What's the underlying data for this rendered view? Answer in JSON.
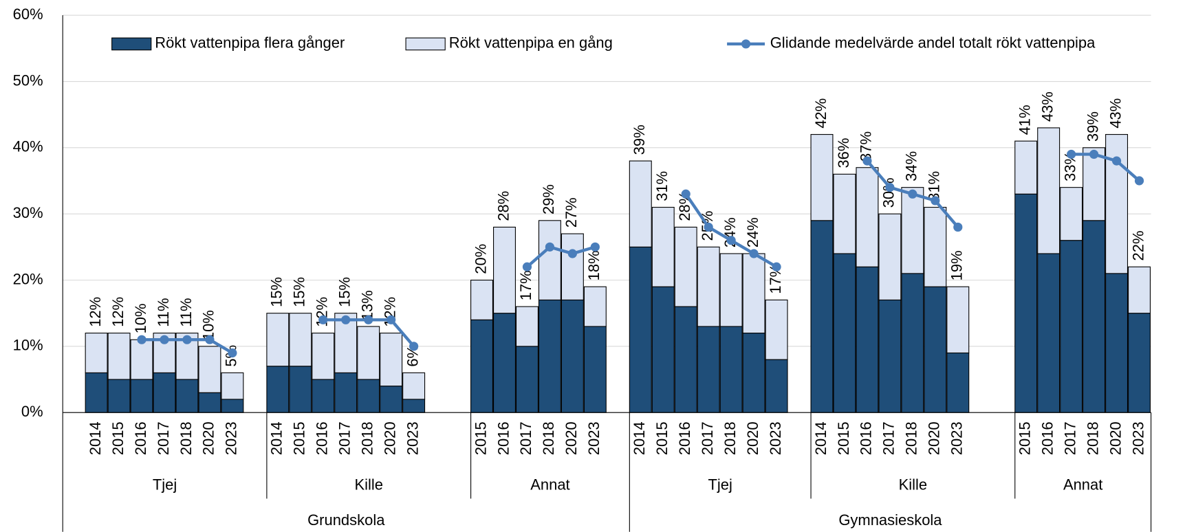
{
  "chart_data": {
    "type": "bar",
    "stacked": true,
    "categories": [
      "2014",
      "2015",
      "2016",
      "2017",
      "2018",
      "2020",
      "2023",
      "2014",
      "2015",
      "2016",
      "2017",
      "2018",
      "2020",
      "2023",
      "2015",
      "2016",
      "2017",
      "2018",
      "2020",
      "2023",
      "2014",
      "2015",
      "2016",
      "2017",
      "2018",
      "2020",
      "2023",
      "2014",
      "2015",
      "2016",
      "2017",
      "2018",
      "2020",
      "2023",
      "2015",
      "2016",
      "2017",
      "2018",
      "2020",
      "2023"
    ],
    "groups": [
      {
        "name": "Grundskola",
        "subgroups": [
          "Tjej",
          "Kille",
          "Annat"
        ]
      },
      {
        "name": "Gymnasieskola",
        "subgroups": [
          "Tjej",
          "Kille",
          "Annat"
        ]
      }
    ],
    "series": [
      {
        "name": "Rökt vattenpipa flera gånger",
        "color": "#1f4e79",
        "values": [
          6,
          5,
          5,
          6,
          5,
          3,
          2,
          7,
          7,
          5,
          6,
          5,
          4,
          2,
          14,
          15,
          10,
          17,
          17,
          13,
          25,
          19,
          16,
          13,
          13,
          12,
          8,
          29,
          24,
          22,
          17,
          21,
          19,
          9,
          33,
          24,
          26,
          29,
          21,
          15
        ]
      },
      {
        "name": "Rökt vattenpipa en gång",
        "color": "#dae3f3",
        "values": [
          6,
          7,
          6,
          6,
          7,
          7,
          4,
          8,
          8,
          7,
          9,
          8,
          8,
          4,
          6,
          13,
          6,
          12,
          10,
          6,
          13,
          12,
          12,
          12,
          11,
          12,
          9,
          13,
          12,
          15,
          13,
          13,
          12,
          10,
          8,
          19,
          8,
          11,
          21,
          7
        ]
      },
      {
        "name": "Glidande medelvärde andel totalt rökt vattenpipa",
        "type": "line",
        "color": "#4a7ebb",
        "values": [
          null,
          null,
          11,
          11,
          11,
          11,
          9,
          null,
          null,
          14,
          14,
          14,
          14,
          10,
          null,
          null,
          22,
          25,
          24,
          25,
          null,
          null,
          33,
          28,
          26,
          24,
          22,
          null,
          null,
          38,
          34,
          33,
          32,
          28,
          null,
          null,
          39,
          39,
          38,
          35
        ]
      }
    ],
    "totals": {
      "values": [
        12,
        12,
        10,
        11,
        11,
        10,
        5,
        15,
        15,
        12,
        15,
        13,
        12,
        6,
        20,
        28,
        17,
        29,
        27,
        18,
        39,
        31,
        28,
        25,
        24,
        24,
        17,
        42,
        36,
        37,
        30,
        34,
        31,
        19,
        41,
        43,
        33,
        39,
        43,
        22
      ],
      "value_labels": [
        "12%",
        "12%",
        "10%",
        "11%",
        "11%",
        "10%",
        "5%",
        "15%",
        "15%",
        "12%",
        "15%",
        "13%",
        "12%",
        "6%",
        "20%",
        "28%",
        "17%",
        "29%",
        "27%",
        "18%",
        "39%",
        "31%",
        "28%",
        "25%",
        "24%",
        "24%",
        "17%",
        "42%",
        "36%",
        "37%",
        "30%",
        "34%",
        "31%",
        "19%",
        "41%",
        "43%",
        "33%",
        "39%",
        "43%",
        "22%"
      ]
    },
    "ylim": [
      0,
      60
    ],
    "yticks": [
      {
        "value": 0,
        "label": "0%"
      },
      {
        "value": 10,
        "label": "10%"
      },
      {
        "value": 20,
        "label": "20%"
      },
      {
        "value": 30,
        "label": "30%"
      },
      {
        "value": 40,
        "label": "40%"
      },
      {
        "value": 50,
        "label": "50%"
      },
      {
        "value": 60,
        "label": "60%"
      }
    ],
    "grid": true,
    "legend": "top"
  }
}
